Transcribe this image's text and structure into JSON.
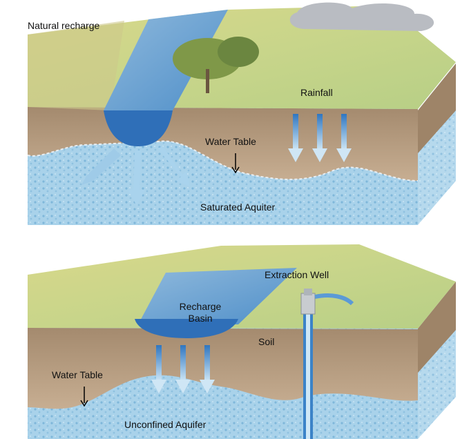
{
  "top": {
    "title": "Natural recharge",
    "rainfall": "Rainfall",
    "water_table": "Water Table",
    "aquifer": "Saturated Aquiter"
  },
  "bottom": {
    "well": "Extraction Well",
    "basin": [
      "Recharge",
      "Basin"
    ],
    "soil": "Soil",
    "water_table": "Water Table",
    "aquifer": "Unconfined Aquifer"
  }
}
